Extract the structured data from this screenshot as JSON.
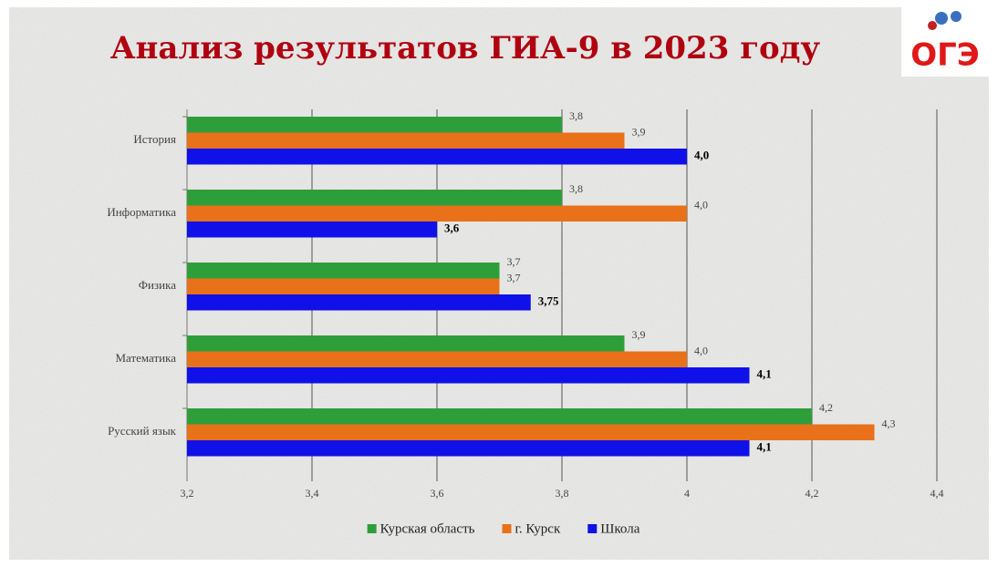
{
  "chart_data": {
    "type": "barh",
    "title": "Анализ результатов ГИА-9 в 2023 году",
    "logo": "ОГЭ",
    "categories": [
      "История",
      "Информатика",
      "Физика",
      "Математика",
      "Русский язык"
    ],
    "series": [
      {
        "name": "Курская область",
        "color": "#2e9e3a",
        "values": [
          3.8,
          3.8,
          3.7,
          3.9,
          4.2
        ],
        "value_labels": [
          "3,8",
          "3,8",
          "3,7",
          "3,9",
          "4,2"
        ]
      },
      {
        "name": "г. Курск",
        "color": "#e8711a",
        "values": [
          3.9,
          4.0,
          3.7,
          4.0,
          4.3
        ],
        "value_labels": [
          "3,9",
          "4,0",
          "3,7",
          "4,0",
          "4,3"
        ]
      },
      {
        "name": "Школа",
        "color": "#1010e8",
        "values": [
          4.0,
          3.6,
          3.75,
          4.1,
          4.1
        ],
        "value_labels": [
          "4,0",
          "3,6",
          "3,75",
          "4,1",
          "4,1"
        ]
      }
    ],
    "xlim": [
      3.2,
      4.4
    ],
    "xticks": [
      {
        "value": 3.2,
        "label": "3,2"
      },
      {
        "value": 3.4,
        "label": "3,4"
      },
      {
        "value": 3.6,
        "label": "3,6"
      },
      {
        "value": 3.8,
        "label": "3,8"
      },
      4,
      {
        "value": 4.2,
        "label": "4,2"
      },
      {
        "value": 4.4,
        "label": "4,4"
      }
    ],
    "grid": true,
    "legend": "bottom"
  }
}
